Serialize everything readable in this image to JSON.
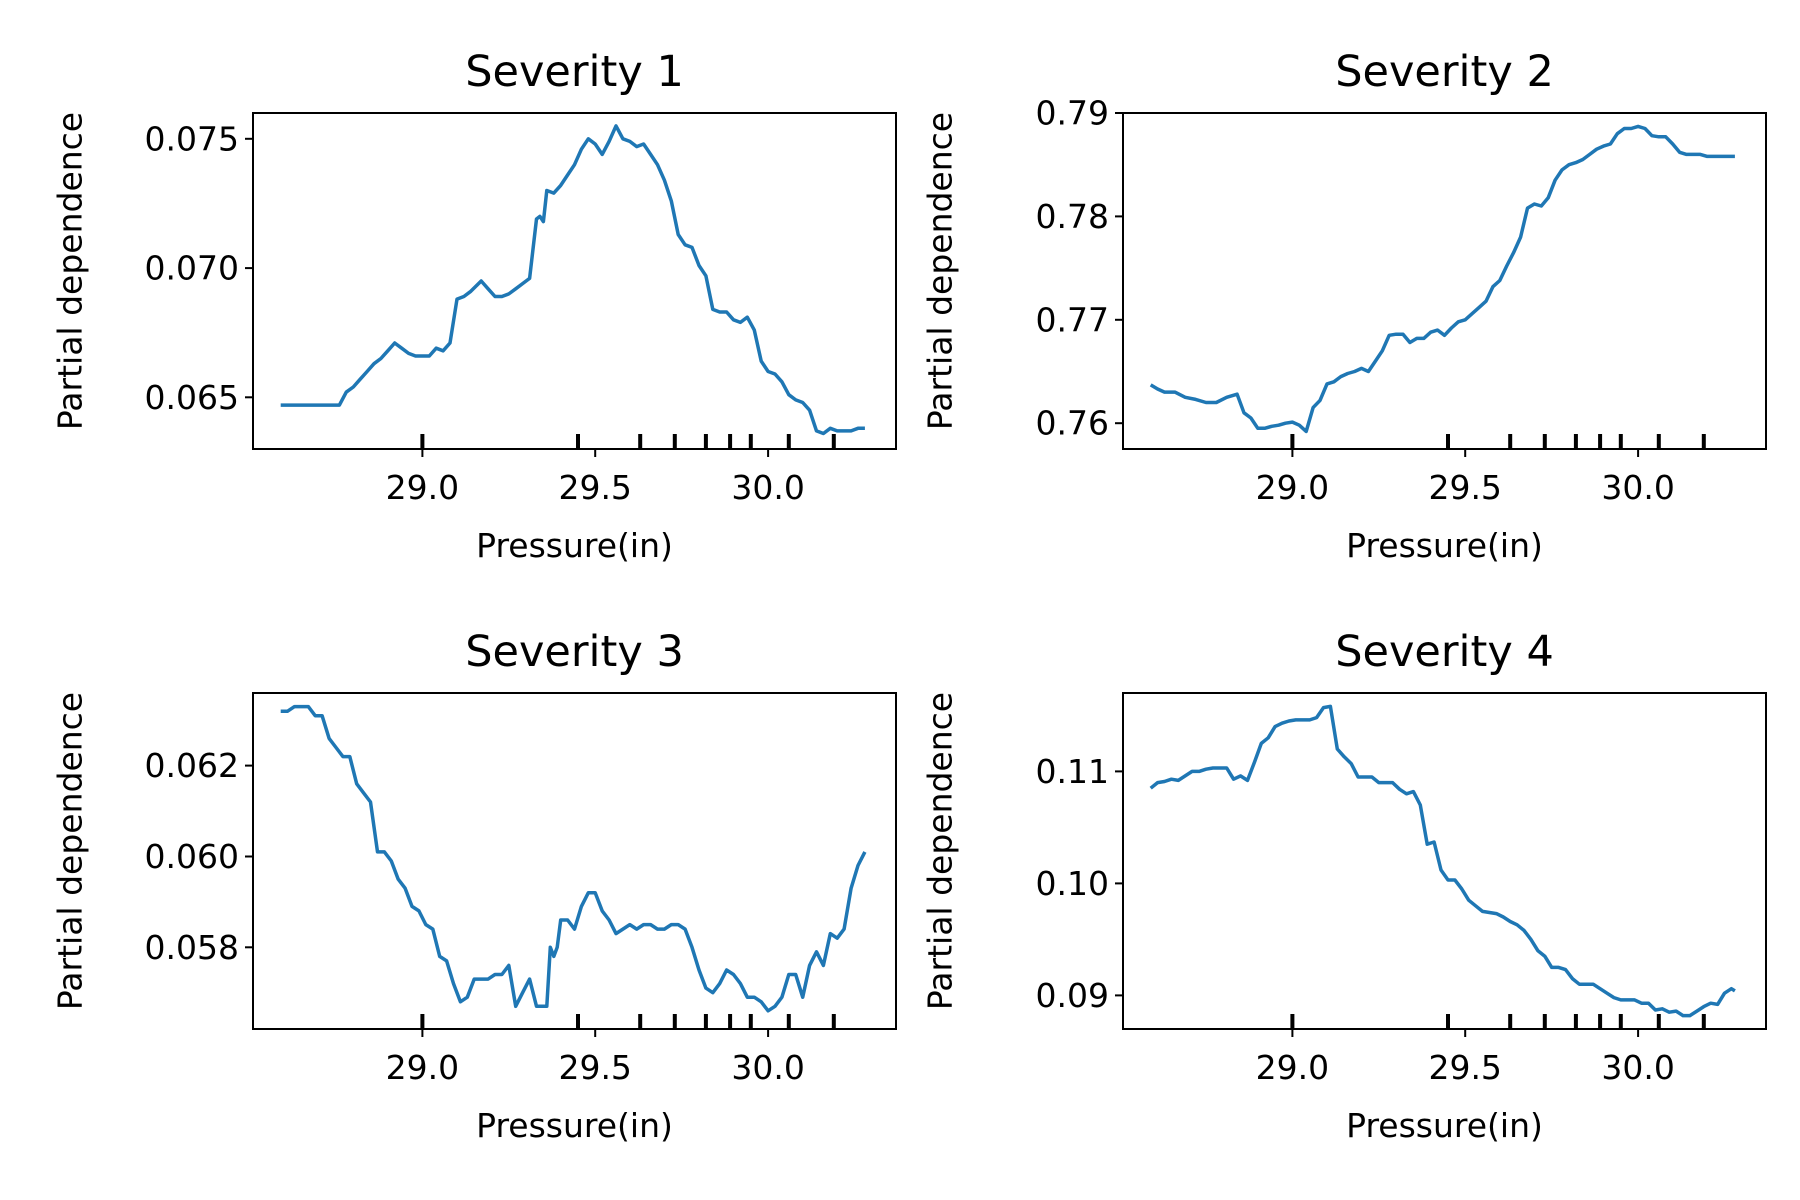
{
  "figure": {
    "line_color": "#1f77b4",
    "ylabel": "Partial dependence",
    "xlabel": "Pressure(in)"
  },
  "chart_data": [
    {
      "type": "line",
      "title": "Severity 1",
      "xlabel": "Pressure(in)",
      "ylabel": "Partial dependence",
      "xlim": [
        28.51,
        30.37
      ],
      "ylim": [
        0.063,
        0.076
      ],
      "xticks": [
        29.0,
        29.5,
        30.0
      ],
      "xtick_labels": [
        "29.0",
        "29.5",
        "30.0"
      ],
      "yticks": [
        0.065,
        0.07,
        0.075
      ],
      "ytick_labels": [
        "0.065",
        "0.070",
        "0.075"
      ],
      "deciles": [
        29.0,
        29.45,
        29.63,
        29.73,
        29.82,
        29.89,
        29.95,
        30.06,
        30.19
      ],
      "x": [
        28.59,
        28.61,
        28.64,
        28.67,
        28.7,
        28.73,
        28.76,
        28.78,
        28.8,
        28.82,
        28.84,
        28.86,
        28.88,
        28.9,
        28.92,
        28.94,
        28.96,
        28.98,
        29.0,
        29.02,
        29.04,
        29.06,
        29.08,
        29.1,
        29.12,
        29.14,
        29.17,
        29.19,
        29.21,
        29.23,
        29.25,
        29.27,
        29.29,
        29.31,
        29.33,
        29.34,
        29.35,
        29.36,
        29.38,
        29.4,
        29.42,
        29.44,
        29.46,
        29.48,
        29.5,
        29.52,
        29.54,
        29.56,
        29.58,
        29.6,
        29.62,
        29.64,
        29.66,
        29.68,
        29.7,
        29.72,
        29.74,
        29.76,
        29.78,
        29.8,
        29.82,
        29.84,
        29.86,
        29.88,
        29.9,
        29.92,
        29.94,
        29.96,
        29.98,
        30.0,
        30.02,
        30.04,
        30.06,
        30.08,
        30.1,
        30.12,
        30.14,
        30.16,
        30.18,
        30.2,
        30.22,
        30.24,
        30.26,
        30.28
      ],
      "y": [
        0.0647,
        0.0647,
        0.0647,
        0.0647,
        0.0647,
        0.0647,
        0.0647,
        0.0652,
        0.0654,
        0.0657,
        0.066,
        0.0663,
        0.0665,
        0.0668,
        0.0671,
        0.0669,
        0.0667,
        0.0666,
        0.0666,
        0.0666,
        0.0669,
        0.0668,
        0.0671,
        0.0688,
        0.0689,
        0.0691,
        0.0695,
        0.0692,
        0.0689,
        0.0689,
        0.069,
        0.0692,
        0.0694,
        0.0696,
        0.0719,
        0.072,
        0.0718,
        0.073,
        0.0729,
        0.0732,
        0.0736,
        0.074,
        0.0746,
        0.075,
        0.0748,
        0.0744,
        0.0749,
        0.0755,
        0.075,
        0.0749,
        0.0747,
        0.0748,
        0.0744,
        0.074,
        0.0734,
        0.0726,
        0.0713,
        0.0709,
        0.0708,
        0.0701,
        0.0697,
        0.0684,
        0.0683,
        0.0683,
        0.068,
        0.0679,
        0.0681,
        0.0676,
        0.0664,
        0.066,
        0.0659,
        0.0656,
        0.0651,
        0.0649,
        0.0648,
        0.0645,
        0.0637,
        0.0636,
        0.0638,
        0.0637,
        0.0637,
        0.0637,
        0.0638,
        0.0638
      ]
    },
    {
      "type": "line",
      "title": "Severity 2",
      "xlabel": "Pressure(in)",
      "ylabel": "Partial dependence",
      "xlim": [
        28.51,
        30.37
      ],
      "ylim": [
        0.7575,
        0.79
      ],
      "xticks": [
        29.0,
        29.5,
        30.0
      ],
      "xtick_labels": [
        "29.0",
        "29.5",
        "30.0"
      ],
      "yticks": [
        0.76,
        0.77,
        0.78,
        0.79
      ],
      "ytick_labels": [
        "0.76",
        "0.77",
        "0.78",
        "0.79"
      ],
      "deciles": [
        29.0,
        29.45,
        29.63,
        29.73,
        29.82,
        29.89,
        29.95,
        30.06,
        30.19
      ],
      "x": [
        28.59,
        28.61,
        28.63,
        28.66,
        28.69,
        28.72,
        28.75,
        28.78,
        28.81,
        28.84,
        28.86,
        28.88,
        28.9,
        28.92,
        28.94,
        28.96,
        28.98,
        29.0,
        29.02,
        29.04,
        29.06,
        29.08,
        29.1,
        29.12,
        29.14,
        29.16,
        29.18,
        29.2,
        29.22,
        29.24,
        29.26,
        29.28,
        29.3,
        29.32,
        29.34,
        29.36,
        29.38,
        29.4,
        29.42,
        29.44,
        29.46,
        29.48,
        29.5,
        29.52,
        29.54,
        29.56,
        29.58,
        29.6,
        29.62,
        29.64,
        29.66,
        29.68,
        29.7,
        29.72,
        29.74,
        29.76,
        29.78,
        29.8,
        29.82,
        29.84,
        29.86,
        29.88,
        29.9,
        29.92,
        29.94,
        29.96,
        29.98,
        30.0,
        30.02,
        30.04,
        30.06,
        30.08,
        30.1,
        30.12,
        30.14,
        30.16,
        30.18,
        30.2,
        30.22,
        30.24,
        30.26,
        30.28
      ],
      "y": [
        0.7637,
        0.7633,
        0.763,
        0.763,
        0.7625,
        0.7623,
        0.762,
        0.762,
        0.7625,
        0.7628,
        0.761,
        0.7605,
        0.7595,
        0.7595,
        0.7597,
        0.7598,
        0.76,
        0.7601,
        0.7598,
        0.7592,
        0.7615,
        0.7622,
        0.7638,
        0.764,
        0.7645,
        0.7648,
        0.765,
        0.7653,
        0.765,
        0.766,
        0.767,
        0.7685,
        0.7686,
        0.7686,
        0.7678,
        0.7682,
        0.7682,
        0.7688,
        0.769,
        0.7685,
        0.7692,
        0.7698,
        0.77,
        0.7706,
        0.7712,
        0.7718,
        0.7732,
        0.7738,
        0.7752,
        0.7765,
        0.778,
        0.7808,
        0.7812,
        0.781,
        0.7818,
        0.7835,
        0.7845,
        0.785,
        0.7852,
        0.7855,
        0.786,
        0.7865,
        0.7868,
        0.787,
        0.788,
        0.7885,
        0.7885,
        0.7887,
        0.7885,
        0.7878,
        0.7877,
        0.7877,
        0.787,
        0.7862,
        0.786,
        0.786,
        0.786,
        0.7858,
        0.7858,
        0.7858,
        0.7858,
        0.7858
      ]
    },
    {
      "type": "line",
      "title": "Severity 3",
      "xlabel": "Pressure(in)",
      "ylabel": "Partial dependence",
      "xlim": [
        28.51,
        30.37
      ],
      "ylim": [
        0.0562,
        0.0636
      ],
      "xticks": [
        29.0,
        29.5,
        30.0
      ],
      "xtick_labels": [
        "29.0",
        "29.5",
        "30.0"
      ],
      "yticks": [
        0.058,
        0.06,
        0.062
      ],
      "ytick_labels": [
        "0.058",
        "0.060",
        "0.062"
      ],
      "deciles": [
        29.0,
        29.45,
        29.63,
        29.73,
        29.82,
        29.89,
        29.95,
        30.06,
        30.19
      ],
      "x": [
        28.59,
        28.61,
        28.63,
        28.65,
        28.67,
        28.69,
        28.71,
        28.73,
        28.75,
        28.77,
        28.79,
        28.81,
        28.83,
        28.85,
        28.87,
        28.89,
        28.91,
        28.93,
        28.95,
        28.97,
        28.99,
        29.01,
        29.03,
        29.05,
        29.07,
        29.09,
        29.11,
        29.13,
        29.15,
        29.17,
        29.19,
        29.21,
        29.23,
        29.25,
        29.27,
        29.29,
        29.31,
        29.33,
        29.34,
        29.35,
        29.36,
        29.37,
        29.38,
        29.39,
        29.4,
        29.42,
        29.44,
        29.46,
        29.48,
        29.5,
        29.52,
        29.54,
        29.56,
        29.58,
        29.6,
        29.62,
        29.64,
        29.66,
        29.68,
        29.7,
        29.72,
        29.74,
        29.76,
        29.78,
        29.8,
        29.82,
        29.84,
        29.86,
        29.88,
        29.9,
        29.92,
        29.94,
        29.96,
        29.98,
        30.0,
        30.02,
        30.04,
        30.06,
        30.08,
        30.1,
        30.12,
        30.14,
        30.16,
        30.18,
        30.2,
        30.22,
        30.24,
        30.26,
        30.28
      ],
      "y": [
        0.0632,
        0.0632,
        0.0633,
        0.0633,
        0.0633,
        0.0631,
        0.0631,
        0.0626,
        0.0624,
        0.0622,
        0.0622,
        0.0616,
        0.0614,
        0.0612,
        0.0601,
        0.0601,
        0.0599,
        0.0595,
        0.0593,
        0.0589,
        0.0588,
        0.0585,
        0.0584,
        0.0578,
        0.0577,
        0.0572,
        0.0568,
        0.0569,
        0.0573,
        0.0573,
        0.0573,
        0.0574,
        0.0574,
        0.0576,
        0.0567,
        0.057,
        0.0573,
        0.0567,
        0.0567,
        0.0567,
        0.0567,
        0.058,
        0.0578,
        0.058,
        0.0586,
        0.0586,
        0.0584,
        0.0589,
        0.0592,
        0.0592,
        0.0588,
        0.0586,
        0.0583,
        0.0584,
        0.0585,
        0.0584,
        0.0585,
        0.0585,
        0.0584,
        0.0584,
        0.0585,
        0.0585,
        0.0584,
        0.058,
        0.0575,
        0.0571,
        0.057,
        0.0572,
        0.0575,
        0.0574,
        0.0572,
        0.0569,
        0.0569,
        0.0568,
        0.0566,
        0.0567,
        0.0569,
        0.0574,
        0.0574,
        0.0569,
        0.0576,
        0.0579,
        0.0576,
        0.0583,
        0.0582,
        0.0584,
        0.0593,
        0.0598,
        0.0601
      ]
    },
    {
      "type": "line",
      "title": "Severity 4",
      "xlabel": "Pressure(in)",
      "ylabel": "Partial dependence",
      "xlim": [
        28.51,
        30.37
      ],
      "ylim": [
        0.087,
        0.117
      ],
      "xticks": [
        29.0,
        29.5,
        30.0
      ],
      "xtick_labels": [
        "29.0",
        "29.5",
        "30.0"
      ],
      "yticks": [
        0.09,
        0.1,
        0.11
      ],
      "ytick_labels": [
        "0.09",
        "0.10",
        "0.11"
      ],
      "deciles": [
        29.0,
        29.45,
        29.63,
        29.73,
        29.82,
        29.89,
        29.95,
        30.06,
        30.19
      ],
      "x": [
        28.59,
        28.61,
        28.63,
        28.65,
        28.67,
        28.69,
        28.71,
        28.73,
        28.75,
        28.77,
        28.79,
        28.81,
        28.83,
        28.85,
        28.87,
        28.89,
        28.91,
        28.93,
        28.95,
        28.97,
        28.99,
        29.01,
        29.03,
        29.05,
        29.07,
        29.09,
        29.11,
        29.13,
        29.15,
        29.17,
        29.19,
        29.21,
        29.23,
        29.25,
        29.27,
        29.29,
        29.31,
        29.33,
        29.35,
        29.37,
        29.39,
        29.41,
        29.43,
        29.45,
        29.47,
        29.49,
        29.51,
        29.53,
        29.55,
        29.57,
        29.59,
        29.61,
        29.63,
        29.65,
        29.67,
        29.69,
        29.71,
        29.73,
        29.75,
        29.77,
        29.79,
        29.81,
        29.83,
        29.85,
        29.87,
        29.89,
        29.91,
        29.93,
        29.95,
        29.97,
        29.99,
        30.01,
        30.03,
        30.05,
        30.07,
        30.09,
        30.11,
        30.13,
        30.15,
        30.17,
        30.19,
        30.21,
        30.23,
        30.25,
        30.27,
        30.28
      ],
      "y": [
        0.1085,
        0.109,
        0.1091,
        0.1093,
        0.1092,
        0.1096,
        0.11,
        0.11,
        0.1102,
        0.1103,
        0.1103,
        0.1103,
        0.1093,
        0.1096,
        0.1092,
        0.1108,
        0.1125,
        0.113,
        0.114,
        0.1143,
        0.1145,
        0.1146,
        0.1146,
        0.1146,
        0.1148,
        0.1157,
        0.1158,
        0.112,
        0.1113,
        0.1107,
        0.1095,
        0.1095,
        0.1095,
        0.109,
        0.109,
        0.109,
        0.1084,
        0.108,
        0.1082,
        0.107,
        0.1035,
        0.1037,
        0.1012,
        0.1003,
        0.1003,
        0.0995,
        0.0985,
        0.098,
        0.0975,
        0.0974,
        0.0973,
        0.097,
        0.0966,
        0.0963,
        0.0958,
        0.095,
        0.094,
        0.0935,
        0.0925,
        0.0925,
        0.0923,
        0.0915,
        0.091,
        0.091,
        0.091,
        0.0906,
        0.0902,
        0.0898,
        0.0896,
        0.0896,
        0.0896,
        0.0893,
        0.0893,
        0.0887,
        0.0888,
        0.0885,
        0.0886,
        0.0882,
        0.0882,
        0.0886,
        0.089,
        0.0893,
        0.0892,
        0.0902,
        0.0906,
        0.0904
      ]
    }
  ]
}
